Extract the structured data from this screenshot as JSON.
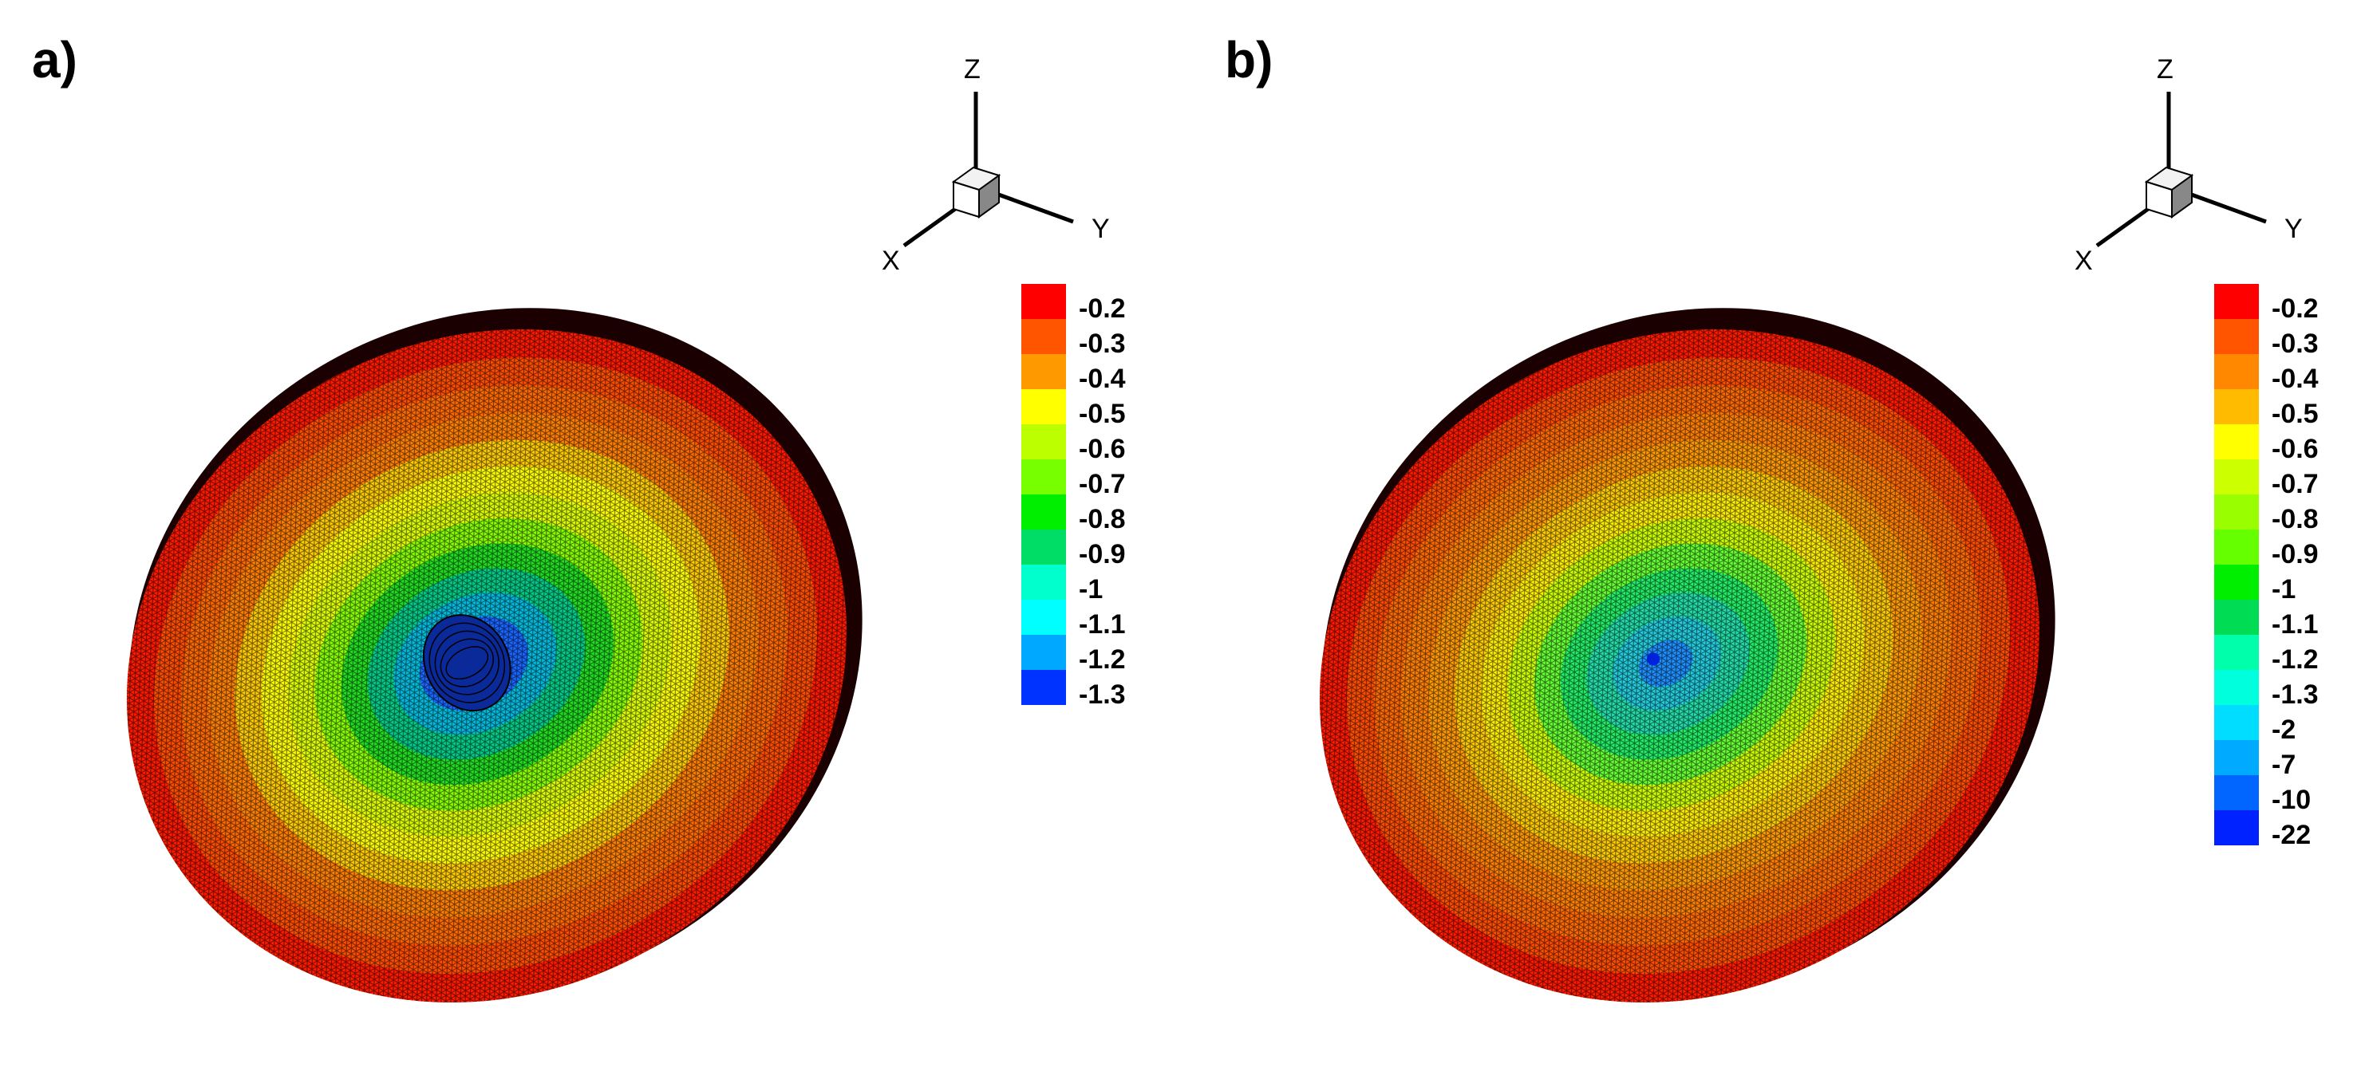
{
  "panels": [
    {
      "id": "a",
      "label": "a)",
      "axes": {
        "x": "X",
        "y": "Y",
        "z": "Z"
      },
      "legend": {
        "levels": [
          "-0.2",
          "-0.3",
          "-0.4",
          "-0.5",
          "-0.6",
          "-0.7",
          "-0.8",
          "-0.9",
          "-1",
          "-1.1",
          "-1.2",
          "-1.3"
        ],
        "colors": [
          "#ff0000",
          "#ff5500",
          "#ff9900",
          "#ffff00",
          "#bbff00",
          "#77ff00",
          "#00ee00",
          "#00dd66",
          "#00ffcc",
          "#00ffff",
          "#00a8ff",
          "#0033ff"
        ]
      },
      "rings": [
        "#ff1a00",
        "#ff4d00",
        "#ff6a00",
        "#ff8000",
        "#ffcc00",
        "#ffff00",
        "#ddff00",
        "#88ff00",
        "#22dd22",
        "#00cc88",
        "#00bbdd",
        "#1a66ff",
        "#0022dd"
      ]
    },
    {
      "id": "b",
      "label": "b)",
      "axes": {
        "x": "X",
        "y": "Y",
        "z": "Z"
      },
      "legend": {
        "levels": [
          "-0.2",
          "-0.3",
          "-0.4",
          "-0.5",
          "-0.6",
          "-0.7",
          "-0.8",
          "-0.9",
          "-1",
          "-1.1",
          "-1.2",
          "-1.3",
          "-2",
          "-7",
          "-10",
          "-22"
        ],
        "colors": [
          "#ff0000",
          "#ff5500",
          "#ff8800",
          "#ffbb00",
          "#ffff00",
          "#ccff00",
          "#99ff00",
          "#66ff00",
          "#00ee00",
          "#00dd55",
          "#00ffaa",
          "#00ffdd",
          "#00ddff",
          "#00aaff",
          "#0066ff",
          "#0022ff"
        ]
      },
      "rings": [
        "#ff1a00",
        "#ff4d00",
        "#ff6a00",
        "#ff8000",
        "#ff9a00",
        "#ffcc00",
        "#ffee00",
        "#ccff00",
        "#66ff33",
        "#22ee66",
        "#22ddaa",
        "#22ccdd",
        "#1e90ff"
      ]
    }
  ]
}
